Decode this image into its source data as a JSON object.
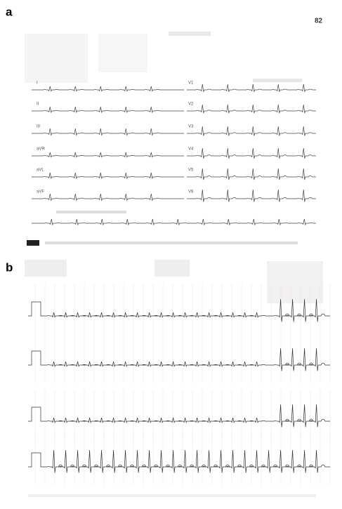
{
  "panel_a": {
    "label": "a",
    "heart_rate": "82",
    "leads_left": [
      "I",
      "II",
      "III",
      "aVR",
      "aVL",
      "aVF"
    ],
    "leads_right": [
      "V1",
      "V2",
      "V3",
      "V4",
      "V5",
      "V6"
    ]
  },
  "panel_b": {
    "label": "b"
  }
}
